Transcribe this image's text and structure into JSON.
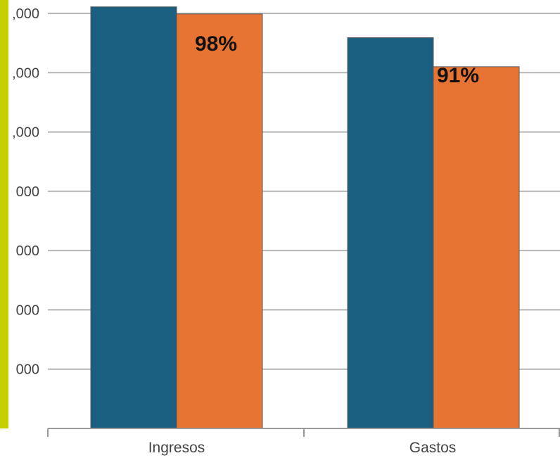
{
  "colors": {
    "accent_bar": "#c6d000",
    "series_1": "#1a5e80",
    "series_2": "#e87434",
    "grid": "#b5b5b5",
    "axis": "#999999"
  },
  "chart_data": {
    "type": "bar",
    "categories": [
      "Ingresos",
      "Gastos"
    ],
    "series": [
      {
        "values": [
          7110,
          6590
        ]
      },
      {
        "values": [
          6990,
          6100
        ]
      }
    ],
    "annotations": [
      "98%",
      "91%"
    ],
    "y_tick_labels": [
      ",000",
      ",000",
      ",000",
      "000",
      "000",
      "000",
      "000"
    ],
    "y_tick_values": [
      7000,
      6000,
      5000,
      4000,
      3000,
      2000,
      1000
    ],
    "ylim": [
      0,
      7000
    ],
    "grid": true,
    "legend": "none"
  }
}
